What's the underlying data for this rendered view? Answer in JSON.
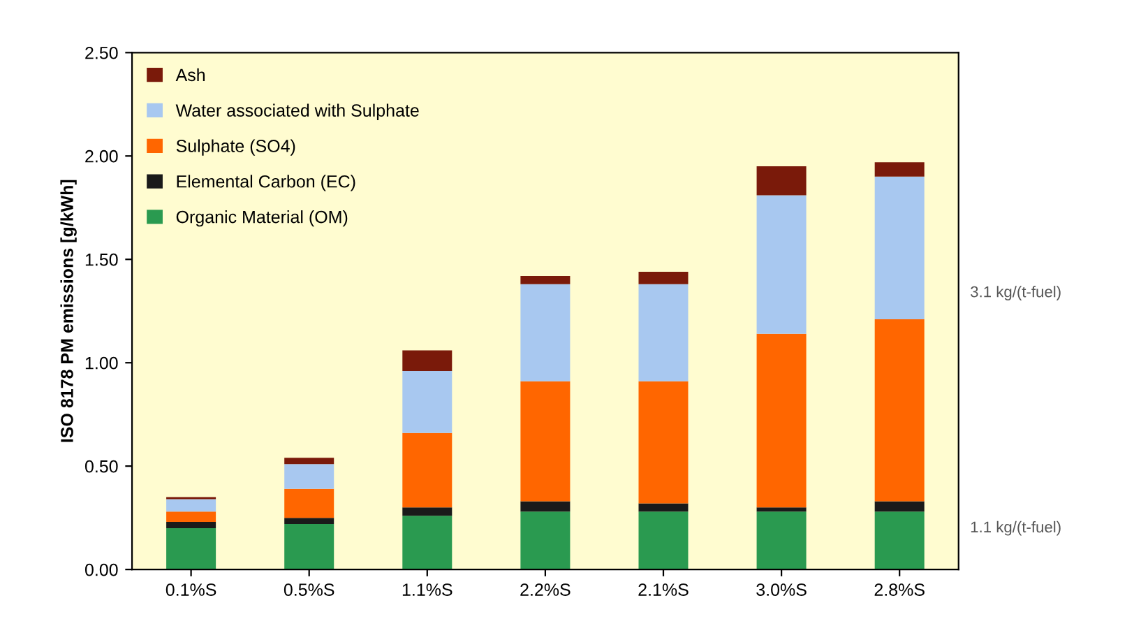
{
  "chart_data": {
    "type": "bar",
    "stacked": true,
    "ylabel": "ISO 8178 PM emissions [g/kWh]",
    "categories": [
      "0.1%S",
      "0.5%S",
      "1.1%S",
      "2.2%S",
      "2.1%S",
      "3.0%S",
      "2.8%S"
    ],
    "series": [
      {
        "name": "Organic Material (OM)",
        "color": "#2a9a50",
        "values": [
          0.2,
          0.22,
          0.26,
          0.28,
          0.28,
          0.28,
          0.28
        ]
      },
      {
        "name": "Elemental Carbon (EC)",
        "color": "#1a1a1a",
        "values": [
          0.03,
          0.03,
          0.04,
          0.05,
          0.04,
          0.02,
          0.05
        ]
      },
      {
        "name": "Sulphate (SO4)",
        "color": "#ff6600",
        "values": [
          0.05,
          0.14,
          0.36,
          0.58,
          0.59,
          0.84,
          0.88
        ]
      },
      {
        "name": "Water associated with Sulphate",
        "color": "#a8c8f0",
        "values": [
          0.06,
          0.12,
          0.3,
          0.47,
          0.47,
          0.67,
          0.69
        ]
      },
      {
        "name": "Ash",
        "color": "#7a1a0a",
        "values": [
          0.01,
          0.03,
          0.1,
          0.04,
          0.06,
          0.14,
          0.07
        ]
      }
    ],
    "ylim": [
      0,
      2.5
    ],
    "yticks": [
      {
        "value": 0,
        "label": "0.00"
      },
      {
        "value": 0.5,
        "label": "0.50"
      },
      {
        "value": 1,
        "label": "1.00"
      },
      {
        "value": 1.5,
        "label": "1.50"
      },
      {
        "value": 2,
        "label": "2.00"
      },
      {
        "value": 2.5,
        "label": "2.50"
      }
    ],
    "grid": false,
    "legend": "top left",
    "annotations": [
      {
        "text": "3.1 kg/(t-fuel)"
      },
      {
        "text": "1.1 kg/(t-fuel)"
      }
    ]
  }
}
